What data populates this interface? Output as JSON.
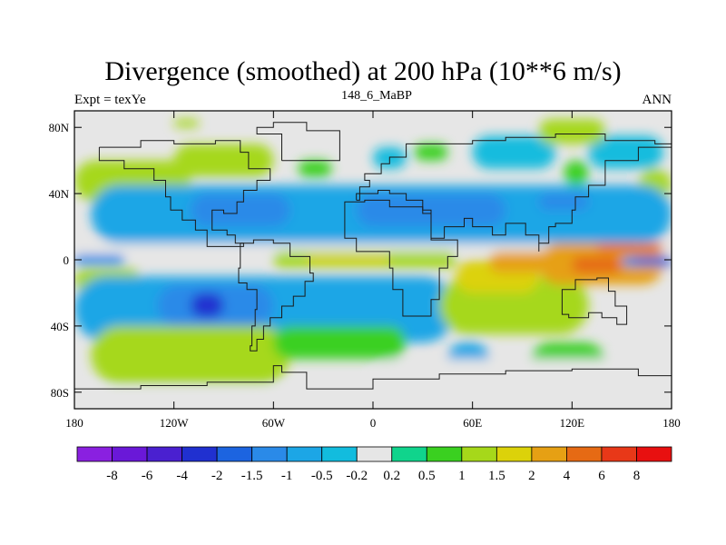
{
  "chart_data": {
    "type": "heatmap",
    "title": "Divergence (smoothed) at 200 hPa (10**6 m/s)",
    "subtitle_left": "Expt = texYe",
    "subtitle_center": "148_6_MaBP",
    "subtitle_right": "ANN",
    "x_ticks": [
      "180",
      "120W",
      "60W",
      "0",
      "60E",
      "120E",
      "180"
    ],
    "y_ticks": [
      "80N",
      "40N",
      "0",
      "40S",
      "80S"
    ],
    "x_tick_lon": [
      -180,
      -120,
      -60,
      0,
      60,
      120,
      180
    ],
    "y_tick_lat": [
      80,
      40,
      0,
      -40,
      -80
    ],
    "xlim": [
      -180,
      180
    ],
    "ylim": [
      -90,
      90
    ],
    "colorbar": {
      "levels": [
        "-8",
        "-6",
        "-4",
        "-2",
        "-1.5",
        "-1",
        "-0.5",
        "-0.2",
        "0.2",
        "0.5",
        "1",
        "1.5",
        "2",
        "4",
        "6",
        "8"
      ],
      "level_values": [
        -8,
        -6,
        -4,
        -2,
        -1.5,
        -1,
        -0.5,
        -0.2,
        0.2,
        0.5,
        1,
        1.5,
        2,
        4,
        6,
        8
      ],
      "colors": [
        "#8a20e0",
        "#6a18d8",
        "#4a20d0",
        "#2030d0",
        "#1c64e0",
        "#2a8ae8",
        "#1ca6e6",
        "#12bcde",
        "#e6e6e6",
        "#10d48c",
        "#3ad020",
        "#a6d81a",
        "#dcd20a",
        "#e6a014",
        "#e66a14",
        "#e83818",
        "#e81010"
      ]
    },
    "regions": [
      {
        "value": 1,
        "lon0": -180,
        "lat0": 35,
        "lon1": -110,
        "lat1": 60
      },
      {
        "value": 1,
        "lon0": -120,
        "lat0": 50,
        "lon1": -60,
        "lat1": 70
      },
      {
        "value": 1,
        "lon0": 160,
        "lat0": 35,
        "lon1": 180,
        "lat1": 55
      },
      {
        "value": 1,
        "lon0": -120,
        "lat0": 80,
        "lon1": -105,
        "lat1": 85
      },
      {
        "value": 0.5,
        "lon0": -45,
        "lat0": 50,
        "lon1": -25,
        "lat1": 60
      },
      {
        "value": 0.5,
        "lon0": 25,
        "lat0": 60,
        "lon1": 45,
        "lat1": 70
      },
      {
        "value": -0.5,
        "lon0": 0,
        "lat0": 55,
        "lon1": 20,
        "lat1": 68
      },
      {
        "value": -0.5,
        "lon0": 60,
        "lat0": 55,
        "lon1": 110,
        "lat1": 75
      },
      {
        "value": -0.5,
        "lon0": 130,
        "lat0": 55,
        "lon1": 175,
        "lat1": 75
      },
      {
        "value": 1,
        "lon0": 100,
        "lat0": 70,
        "lon1": 140,
        "lat1": 85
      },
      {
        "value": 0.5,
        "lon0": 115,
        "lat0": 45,
        "lon1": 130,
        "lat1": 60
      },
      {
        "value": -1,
        "lon0": -170,
        "lat0": 10,
        "lon1": 180,
        "lat1": 45
      },
      {
        "value": -1.5,
        "lon0": -110,
        "lat0": 20,
        "lon1": -50,
        "lat1": 40
      },
      {
        "value": -1.5,
        "lon0": -10,
        "lat0": 20,
        "lon1": 80,
        "lat1": 40
      },
      {
        "value": -1.5,
        "lon0": 100,
        "lat0": 30,
        "lon1": 130,
        "lat1": 40
      },
      {
        "value": -0.2,
        "lon0": -180,
        "lat0": 5,
        "lon1": 180,
        "lat1": 10
      },
      {
        "value": 1,
        "lon0": -60,
        "lat0": -5,
        "lon1": 50,
        "lat1": 5
      },
      {
        "value": 1.5,
        "lon0": -40,
        "lat0": -2,
        "lon1": 10,
        "lat1": 3
      },
      {
        "value": 1,
        "lon0": -180,
        "lat0": -20,
        "lon1": -140,
        "lat1": -5
      },
      {
        "value": -1.5,
        "lon0": -180,
        "lat0": -3,
        "lon1": -150,
        "lat1": 3
      },
      {
        "value": -1,
        "lon0": -180,
        "lat0": -50,
        "lon1": 50,
        "lat1": -10
      },
      {
        "value": -1.5,
        "lon0": -130,
        "lat0": -40,
        "lon1": -60,
        "lat1": -15
      },
      {
        "value": -4,
        "lon0": -110,
        "lat0": -35,
        "lon1": -90,
        "lat1": -20
      },
      {
        "value": 1,
        "lon0": -170,
        "lat0": -75,
        "lon1": -50,
        "lat1": -40
      },
      {
        "value": 0.5,
        "lon0": -60,
        "lat0": -60,
        "lon1": 20,
        "lat1": -40
      },
      {
        "value": 1,
        "lon0": 40,
        "lat0": -45,
        "lon1": 130,
        "lat1": -10
      },
      {
        "value": 1.5,
        "lon0": 50,
        "lat0": -20,
        "lon1": 100,
        "lat1": 0
      },
      {
        "value": 2,
        "lon0": 70,
        "lat0": -8,
        "lon1": 110,
        "lat1": 5
      },
      {
        "value": 2,
        "lon0": 100,
        "lat0": -15,
        "lon1": 175,
        "lat1": 10
      },
      {
        "value": 4,
        "lon0": 120,
        "lat0": -8,
        "lon1": 150,
        "lat1": 2
      },
      {
        "value": 4,
        "lon0": 135,
        "lat0": 5,
        "lon1": 175,
        "lat1": 10
      },
      {
        "value": -1.5,
        "lon0": 150,
        "lat0": -4,
        "lon1": 180,
        "lat1": 2
      },
      {
        "value": -4,
        "lon0": 158,
        "lat0": -2,
        "lon1": 180,
        "lat1": 1
      },
      {
        "value": 0.5,
        "lon0": 95,
        "lat0": -75,
        "lon1": 140,
        "lat1": -50
      },
      {
        "value": -1,
        "lon0": 45,
        "lat0": -70,
        "lon1": 70,
        "lat1": -50
      },
      {
        "value": -0.2,
        "lon0": 0,
        "lat0": -90,
        "lon1": 180,
        "lat1": -60
      },
      {
        "value": -0.2,
        "lon0": -180,
        "lat0": -90,
        "lon1": -40,
        "lat1": -78
      }
    ]
  }
}
